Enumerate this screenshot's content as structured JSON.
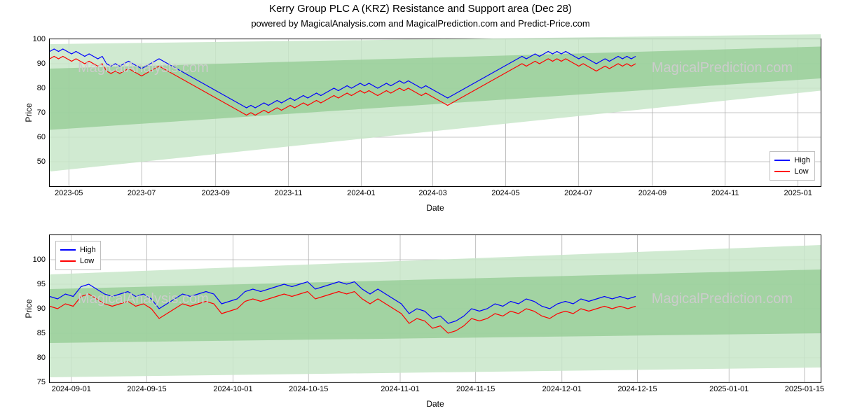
{
  "title": "Kerry Group PLC A (KRZ) Resistance and Support area (Dec 28)",
  "subtitle": "powered by MagicalAnalysis.com and MagicalPrediction.com and Predict-Price.com",
  "watermark_left": "MagicalAnalysis.com",
  "watermark_right": "MagicalPrediction.com",
  "colors": {
    "high": "#0000ff",
    "low": "#ff0000",
    "band_light": "#c8e6c9",
    "band_dark": "#8fc98f",
    "grid": "#b0b0b0",
    "border": "#000000",
    "watermark": "#cccccc",
    "background": "#ffffff"
  },
  "legend": {
    "high": "High",
    "low": "Low"
  },
  "panel_top": {
    "type": "line",
    "ylabel": "Price",
    "xlabel": "Date",
    "ylim": [
      40,
      100
    ],
    "yticks": [
      50,
      60,
      70,
      80,
      90,
      100
    ],
    "x_start": "2023-04-15",
    "x_end": "2025-01-20",
    "xticks": [
      "2023-05",
      "2023-07",
      "2023-09",
      "2023-11",
      "2024-01",
      "2024-03",
      "2024-05",
      "2024-07",
      "2024-09",
      "2024-11",
      "2025-01"
    ],
    "band_light_start": [
      46,
      98
    ],
    "band_light_end": [
      79,
      102
    ],
    "band_dark_start": [
      63,
      88
    ],
    "band_dark_end": [
      84,
      97
    ],
    "line_width": 1.2,
    "high": [
      95,
      96,
      95,
      96,
      95,
      94,
      95,
      94,
      93,
      94,
      93,
      92,
      93,
      90,
      89,
      90,
      89,
      90,
      91,
      90,
      89,
      88,
      89,
      90,
      91,
      92,
      91,
      90,
      89,
      88,
      87,
      86,
      85,
      84,
      83,
      82,
      81,
      80,
      79,
      78,
      77,
      76,
      75,
      74,
      73,
      72,
      73,
      72,
      73,
      74,
      73,
      74,
      75,
      74,
      75,
      76,
      75,
      76,
      77,
      76,
      77,
      78,
      77,
      78,
      79,
      80,
      79,
      80,
      81,
      80,
      81,
      82,
      81,
      82,
      81,
      80,
      81,
      82,
      81,
      82,
      83,
      82,
      83,
      82,
      81,
      80,
      81,
      80,
      79,
      78,
      77,
      76,
      77,
      78,
      79,
      80,
      81,
      82,
      83,
      84,
      85,
      86,
      87,
      88,
      89,
      90,
      91,
      92,
      93,
      92,
      93,
      94,
      93,
      94,
      95,
      94,
      95,
      94,
      95,
      94,
      93,
      92,
      93,
      92,
      91,
      90,
      91,
      92,
      91,
      92,
      93,
      92,
      93,
      92,
      93
    ],
    "low": [
      92,
      93,
      92,
      93,
      92,
      91,
      92,
      91,
      90,
      91,
      90,
      89,
      90,
      87,
      86,
      87,
      86,
      87,
      88,
      87,
      86,
      85,
      86,
      87,
      88,
      89,
      88,
      87,
      86,
      85,
      84,
      83,
      82,
      81,
      80,
      79,
      78,
      77,
      76,
      75,
      74,
      73,
      72,
      71,
      70,
      69,
      70,
      69,
      70,
      71,
      70,
      71,
      72,
      71,
      72,
      73,
      72,
      73,
      74,
      73,
      74,
      75,
      74,
      75,
      76,
      77,
      76,
      77,
      78,
      77,
      78,
      79,
      78,
      79,
      78,
      77,
      78,
      79,
      78,
      79,
      80,
      79,
      80,
      79,
      78,
      77,
      78,
      77,
      76,
      75,
      74,
      73,
      74,
      75,
      76,
      77,
      78,
      79,
      80,
      81,
      82,
      83,
      84,
      85,
      86,
      87,
      88,
      89,
      90,
      89,
      90,
      91,
      90,
      91,
      92,
      91,
      92,
      91,
      92,
      91,
      90,
      89,
      90,
      89,
      88,
      87,
      88,
      89,
      88,
      89,
      90,
      89,
      90,
      89,
      90
    ]
  },
  "panel_bottom": {
    "type": "line",
    "ylabel": "Price",
    "xlabel": "Date",
    "ylim": [
      75,
      105
    ],
    "yticks": [
      75,
      80,
      85,
      90,
      95,
      100
    ],
    "x_start": "2024-08-28",
    "x_end": "2025-01-18",
    "xticks": [
      "2024-09-01",
      "2024-09-15",
      "2024-10-01",
      "2024-10-15",
      "2024-11-01",
      "2024-11-15",
      "2024-12-01",
      "2024-12-15",
      "2025-01-01",
      "2025-01-15"
    ],
    "band_light_start": [
      76,
      97
    ],
    "band_light_end": [
      78,
      103
    ],
    "band_dark_start": [
      83,
      94
    ],
    "band_dark_end": [
      85,
      98
    ],
    "line_width": 1.2,
    "high": [
      92.5,
      92.0,
      93.0,
      92.5,
      94.5,
      95.0,
      94.0,
      93.0,
      92.5,
      93.0,
      93.5,
      92.5,
      93.0,
      92.0,
      90.0,
      91.0,
      92.0,
      93.0,
      92.5,
      93.0,
      93.5,
      93.0,
      91.0,
      91.5,
      92.0,
      93.5,
      94.0,
      93.5,
      94.0,
      94.5,
      95.0,
      94.5,
      95.0,
      95.5,
      94.0,
      94.5,
      95.0,
      95.5,
      95.0,
      95.5,
      94.0,
      93.0,
      94.0,
      93.0,
      92.0,
      91.0,
      89.0,
      90.0,
      89.5,
      88.0,
      88.5,
      87.0,
      87.5,
      88.5,
      90.0,
      89.5,
      90.0,
      91.0,
      90.5,
      91.5,
      91.0,
      92.0,
      91.5,
      90.5,
      90.0,
      91.0,
      91.5,
      91.0,
      92.0,
      91.5,
      92.0,
      92.5,
      92.0,
      92.5,
      92.0,
      92.5
    ],
    "low": [
      90.5,
      90.0,
      91.0,
      90.5,
      92.5,
      93.0,
      92.0,
      91.0,
      90.5,
      91.0,
      91.5,
      90.5,
      91.0,
      90.0,
      88.0,
      89.0,
      90.0,
      91.0,
      90.5,
      91.0,
      91.5,
      91.0,
      89.0,
      89.5,
      90.0,
      91.5,
      92.0,
      91.5,
      92.0,
      92.5,
      93.0,
      92.5,
      93.0,
      93.5,
      92.0,
      92.5,
      93.0,
      93.5,
      93.0,
      93.5,
      92.0,
      91.0,
      92.0,
      91.0,
      90.0,
      89.0,
      87.0,
      88.0,
      87.5,
      86.0,
      86.5,
      85.0,
      85.5,
      86.5,
      88.0,
      87.5,
      88.0,
      89.0,
      88.5,
      89.5,
      89.0,
      90.0,
      89.5,
      88.5,
      88.0,
      89.0,
      89.5,
      89.0,
      90.0,
      89.5,
      90.0,
      90.5,
      90.0,
      90.5,
      90.0,
      90.5
    ]
  },
  "title_fontsize": 15,
  "subtitle_fontsize": 13,
  "tick_fontsize": 11,
  "label_fontsize": 12,
  "watermark_fontsize": 20
}
